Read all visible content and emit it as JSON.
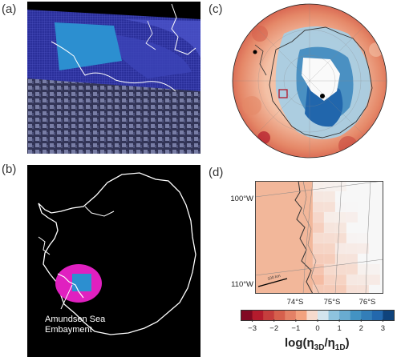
{
  "figure": {
    "panels": [
      {
        "letter": "(a)"
      },
      {
        "letter": "(b)",
        "annotation_line1": "Amundsen Sea",
        "annotation_line2": "Embayment"
      },
      {
        "letter": "(c)"
      },
      {
        "letter": "(d)",
        "lon_labels": [
          "100°W",
          "110°W"
        ],
        "lat_labels": [
          "74°S",
          "75°S",
          "76°S"
        ],
        "scale_label": "100 km"
      }
    ],
    "colorbar": {
      "ticks": [
        "−3",
        "−2",
        "−1",
        "0",
        "1",
        "2",
        "3"
      ],
      "label_main": "log(η",
      "label_sub1": "3D",
      "label_mid": "/η",
      "label_sub2": "1D",
      "label_end": ")",
      "min": -3.5,
      "max": 3.5
    },
    "colors": {
      "mesh_blue": "#2a2f9a",
      "refined_blue": "#2c8fd0",
      "magenta": "#e020c0",
      "red": "#b2182b",
      "blue": "#2166ac"
    }
  }
}
